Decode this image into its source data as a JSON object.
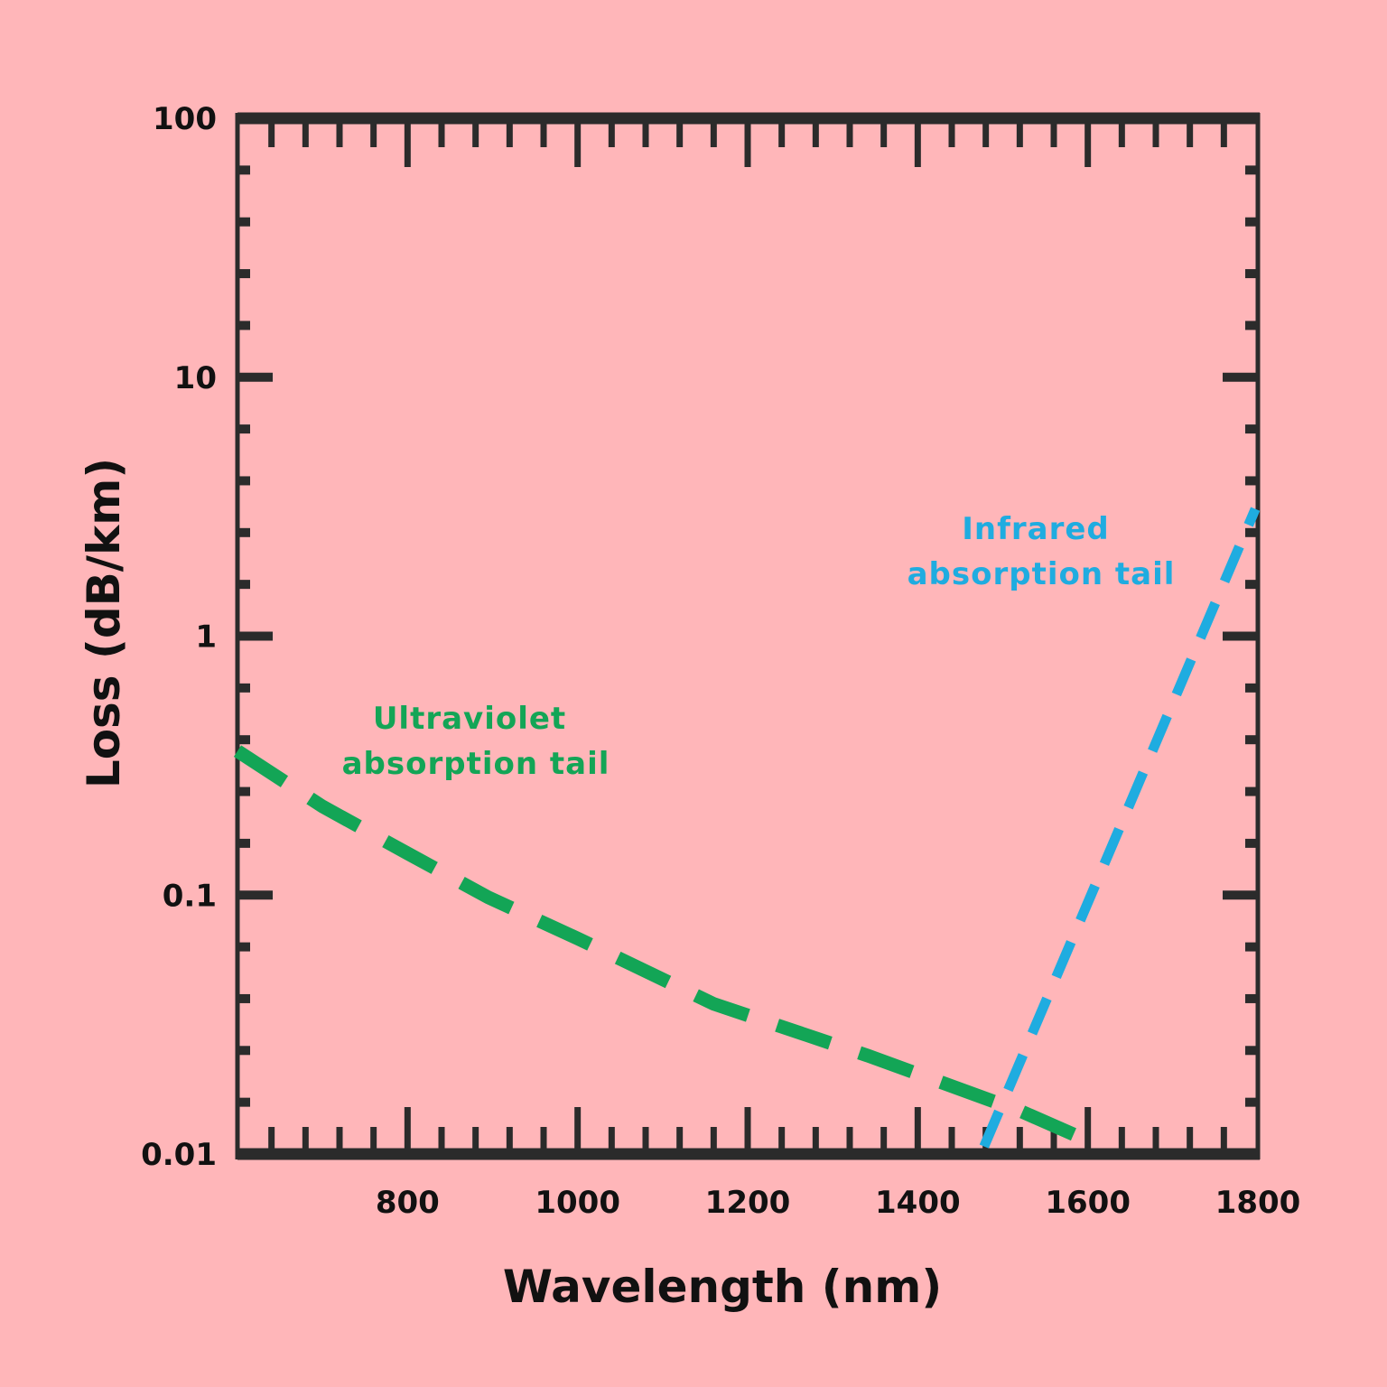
{
  "chart_data": {
    "type": "line",
    "title": "",
    "xlabel": "Wavelength (nm)",
    "ylabel": "Loss (dB/km)",
    "xlim": [
      600,
      1800
    ],
    "ylim": [
      0.01,
      100
    ],
    "yscale": "log",
    "grid": false,
    "background_color": "#ffb6b9",
    "axis_color": "#2b2b2b",
    "x_ticks": [
      "800",
      "1000",
      "1200",
      "1400",
      "1600",
      "1800"
    ],
    "x_tick_values": [
      800,
      1000,
      1200,
      1400,
      1600,
      1800
    ],
    "y_ticks": [
      "100",
      "10",
      "1",
      "0.1",
      "0.01"
    ],
    "y_tick_values": [
      100,
      10,
      1,
      0.1,
      0.01
    ],
    "series": [
      {
        "name": "Ultraviolet absorption tail",
        "color": "#13a556",
        "style": "dashed",
        "x": [
          600,
          700,
          800,
          895,
          1000,
          1160,
          1341,
          1522,
          1602
        ],
        "y": [
          0.36,
          0.22,
          0.145,
          0.098,
          0.068,
          0.038,
          0.024,
          0.0146,
          0.0112
        ]
      },
      {
        "name": "Infrared absorption tail",
        "color": "#1face0",
        "style": "dashed",
        "x": [
          1478,
          1797
        ],
        "y": [
          0.0107,
          3.1
        ]
      }
    ],
    "annotations": [
      {
        "lines": [
          "Ultraviolet",
          "absorption tail"
        ],
        "color": "#13a556"
      },
      {
        "lines": [
          "Infrared",
          "absorption tail"
        ],
        "color": "#1face0"
      }
    ]
  }
}
